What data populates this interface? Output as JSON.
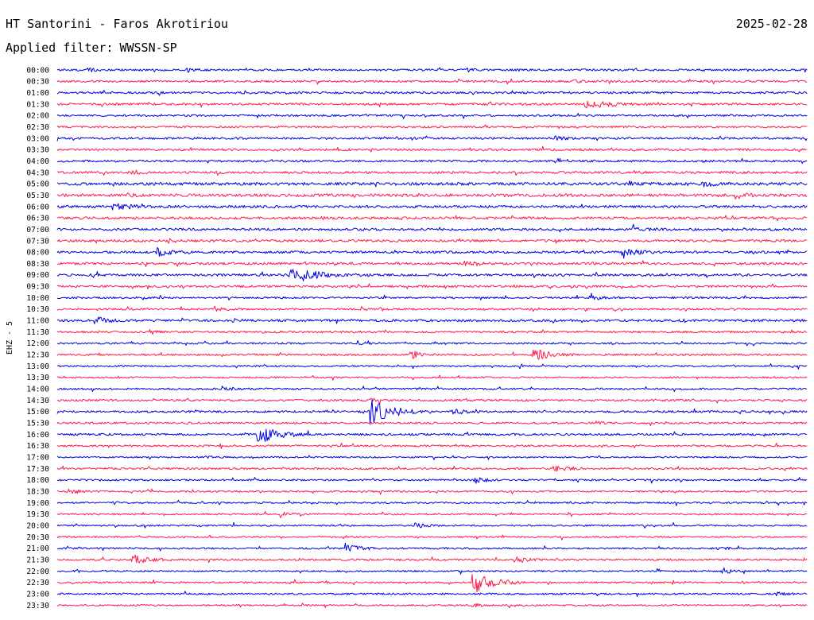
{
  "header": {
    "station": "HT Santorini - Faros Akrotiriou",
    "date": "2025-02-28",
    "filter_label": "Applied filter:",
    "filter_name": "WWSSN-SP"
  },
  "channel_label": "EHZ - 5",
  "colors": {
    "trace_a": "#0000e0",
    "trace_b": "#ff1a4d",
    "background": "#ffffff",
    "text": "#000000"
  },
  "chart_data": {
    "type": "line",
    "xlabel": "",
    "ylabel": "EHZ - 5",
    "row_minutes": 30,
    "grid": false,
    "rows": [
      {
        "label": "00:00",
        "noise": 1.3,
        "events": [
          {
            "minute": 1.2,
            "amp": 2.2,
            "dur": 0.3
          },
          {
            "minute": 5.2,
            "amp": 2.0,
            "dur": 0.2
          },
          {
            "minute": 16.4,
            "amp": 1.8,
            "dur": 0.2
          }
        ]
      },
      {
        "label": "00:30",
        "noise": 1.3,
        "events": [
          {
            "minute": 20.6,
            "amp": 1.8,
            "dur": 0.3
          }
        ]
      },
      {
        "label": "01:00",
        "noise": 1.3,
        "events": [
          {
            "minute": 7.5,
            "amp": 1.6,
            "dur": 0.2
          }
        ]
      },
      {
        "label": "01:30",
        "noise": 1.4,
        "events": [
          {
            "minute": 21.0,
            "amp": 6.0,
            "dur": 0.5
          },
          {
            "minute": 21.6,
            "amp": 3.0,
            "dur": 0.6
          }
        ]
      },
      {
        "label": "02:00",
        "noise": 1.2,
        "events": []
      },
      {
        "label": "02:30",
        "noise": 1.2,
        "events": []
      },
      {
        "label": "03:00",
        "noise": 1.3,
        "events": [
          {
            "minute": 19.9,
            "amp": 3.0,
            "dur": 0.4
          }
        ]
      },
      {
        "label": "03:30",
        "noise": 1.4,
        "events": [
          {
            "minute": 11.2,
            "amp": 1.8,
            "dur": 0.2
          }
        ]
      },
      {
        "label": "04:00",
        "noise": 1.3,
        "events": []
      },
      {
        "label": "04:30",
        "noise": 1.5,
        "events": [
          {
            "minute": 3.0,
            "amp": 2.0,
            "dur": 0.3
          },
          {
            "minute": 23.0,
            "amp": 1.8,
            "dur": 0.2
          }
        ]
      },
      {
        "label": "05:00",
        "noise": 1.8,
        "events": [
          {
            "minute": 25.8,
            "amp": 3.0,
            "dur": 0.4
          }
        ]
      },
      {
        "label": "05:30",
        "noise": 1.8,
        "events": [
          {
            "minute": 2.8,
            "amp": 2.0,
            "dur": 0.2
          },
          {
            "minute": 27.1,
            "amp": 4.0,
            "dur": 0.4
          }
        ]
      },
      {
        "label": "06:00",
        "noise": 1.6,
        "events": [
          {
            "minute": 2.2,
            "amp": 5.0,
            "dur": 0.3
          },
          {
            "minute": 2.6,
            "amp": 3.0,
            "dur": 0.3
          }
        ]
      },
      {
        "label": "06:30",
        "noise": 1.5,
        "events": [
          {
            "minute": 10.5,
            "amp": 2.0,
            "dur": 0.2
          }
        ]
      },
      {
        "label": "07:00",
        "noise": 1.5,
        "events": [
          {
            "minute": 23.0,
            "amp": 3.0,
            "dur": 0.4
          }
        ]
      },
      {
        "label": "07:30",
        "noise": 1.5,
        "events": [
          {
            "minute": 4.4,
            "amp": 2.5,
            "dur": 0.3
          }
        ]
      },
      {
        "label": "08:00",
        "noise": 1.5,
        "events": [
          {
            "minute": 4.0,
            "amp": 5.0,
            "dur": 0.4
          },
          {
            "minute": 22.6,
            "amp": 5.0,
            "dur": 0.5
          }
        ]
      },
      {
        "label": "08:30",
        "noise": 1.5,
        "events": [
          {
            "minute": 4.8,
            "amp": 2.0,
            "dur": 0.2
          },
          {
            "minute": 16.3,
            "amp": 3.0,
            "dur": 0.4
          }
        ]
      },
      {
        "label": "09:00",
        "noise": 1.5,
        "events": [
          {
            "minute": 9.3,
            "amp": 8.0,
            "dur": 0.6
          },
          {
            "minute": 9.8,
            "amp": 4.0,
            "dur": 0.8
          }
        ]
      },
      {
        "label": "09:30",
        "noise": 1.4,
        "events": []
      },
      {
        "label": "10:00",
        "noise": 1.2,
        "events": [
          {
            "minute": 21.3,
            "amp": 3.0,
            "dur": 0.4
          }
        ]
      },
      {
        "label": "10:30",
        "noise": 1.2,
        "events": [
          {
            "minute": 6.3,
            "amp": 3.0,
            "dur": 0.3
          },
          {
            "minute": 12.9,
            "amp": 2.0,
            "dur": 0.2
          }
        ]
      },
      {
        "label": "11:00",
        "noise": 1.5,
        "events": [
          {
            "minute": 1.5,
            "amp": 6.0,
            "dur": 0.4
          },
          {
            "minute": 7.1,
            "amp": 2.0,
            "dur": 0.2
          }
        ]
      },
      {
        "label": "11:30",
        "noise": 1.2,
        "events": [
          {
            "minute": 3.7,
            "amp": 3.0,
            "dur": 0.3
          }
        ]
      },
      {
        "label": "12:00",
        "noise": 1.1,
        "events": [
          {
            "minute": 12.0,
            "amp": 2.5,
            "dur": 0.3
          }
        ]
      },
      {
        "label": "12:30",
        "noise": 1.2,
        "events": [
          {
            "minute": 1.7,
            "amp": 2.0,
            "dur": 0.2
          },
          {
            "minute": 14.2,
            "amp": 4.0,
            "dur": 0.4
          },
          {
            "minute": 19.0,
            "amp": 8.0,
            "dur": 0.6
          }
        ]
      },
      {
        "label": "13:00",
        "noise": 1.0,
        "events": []
      },
      {
        "label": "13:30",
        "noise": 1.0,
        "events": []
      },
      {
        "label": "14:00",
        "noise": 1.2,
        "events": [
          {
            "minute": 6.5,
            "amp": 3.0,
            "dur": 0.4
          }
        ]
      },
      {
        "label": "14:30",
        "noise": 1.3,
        "events": [
          {
            "minute": 12.5,
            "amp": 2.0,
            "dur": 0.3
          }
        ]
      },
      {
        "label": "15:00",
        "noise": 1.3,
        "events": [
          {
            "minute": 12.5,
            "amp": 16.0,
            "dur": 0.8
          },
          {
            "minute": 15.8,
            "amp": 4.0,
            "dur": 0.4
          }
        ]
      },
      {
        "label": "15:30",
        "noise": 1.2,
        "events": [
          {
            "minute": 21.5,
            "amp": 2.0,
            "dur": 0.3
          }
        ]
      },
      {
        "label": "16:00",
        "noise": 1.3,
        "events": [
          {
            "minute": 8.0,
            "amp": 14.0,
            "dur": 0.7
          }
        ]
      },
      {
        "label": "16:30",
        "noise": 1.2,
        "events": []
      },
      {
        "label": "17:00",
        "noise": 1.0,
        "events": [
          {
            "minute": 6.0,
            "amp": 2.0,
            "dur": 0.2
          }
        ]
      },
      {
        "label": "17:30",
        "noise": 1.2,
        "events": [
          {
            "minute": 19.8,
            "amp": 4.5,
            "dur": 0.4
          }
        ]
      },
      {
        "label": "18:00",
        "noise": 1.1,
        "events": [
          {
            "minute": 16.7,
            "amp": 4.0,
            "dur": 0.4
          }
        ]
      },
      {
        "label": "18:30",
        "noise": 1.1,
        "events": [
          {
            "minute": 0.4,
            "amp": 4.0,
            "dur": 0.3
          }
        ]
      },
      {
        "label": "19:00",
        "noise": 1.0,
        "events": [
          {
            "minute": 2.2,
            "amp": 2.0,
            "dur": 0.2
          }
        ]
      },
      {
        "label": "19:30",
        "noise": 1.1,
        "events": [
          {
            "minute": 8.9,
            "amp": 4.0,
            "dur": 0.4
          }
        ]
      },
      {
        "label": "20:00",
        "noise": 1.0,
        "events": [
          {
            "minute": 14.2,
            "amp": 4.0,
            "dur": 0.4
          }
        ]
      },
      {
        "label": "20:30",
        "noise": 1.0,
        "events": []
      },
      {
        "label": "21:00",
        "noise": 1.1,
        "events": [
          {
            "minute": 11.5,
            "amp": 6.0,
            "dur": 0.5
          },
          {
            "minute": 26.4,
            "amp": 2.0,
            "dur": 0.3
          }
        ]
      },
      {
        "label": "21:30",
        "noise": 1.2,
        "events": [
          {
            "minute": 3.0,
            "amp": 7.0,
            "dur": 0.5
          },
          {
            "minute": 18.4,
            "amp": 4.0,
            "dur": 0.4
          }
        ]
      },
      {
        "label": "22:00",
        "noise": 1.0,
        "events": [
          {
            "minute": 0.7,
            "amp": 2.0,
            "dur": 0.2
          },
          {
            "minute": 26.6,
            "amp": 4.0,
            "dur": 0.3
          }
        ]
      },
      {
        "label": "22:30",
        "noise": 1.1,
        "events": [
          {
            "minute": 16.6,
            "amp": 14.0,
            "dur": 0.7
          }
        ]
      },
      {
        "label": "23:00",
        "noise": 1.1,
        "events": [
          {
            "minute": 28.7,
            "amp": 2.5,
            "dur": 0.3
          }
        ]
      },
      {
        "label": "23:30",
        "noise": 1.0,
        "events": [
          {
            "minute": 16.6,
            "amp": 3.0,
            "dur": 0.3
          }
        ]
      }
    ]
  }
}
